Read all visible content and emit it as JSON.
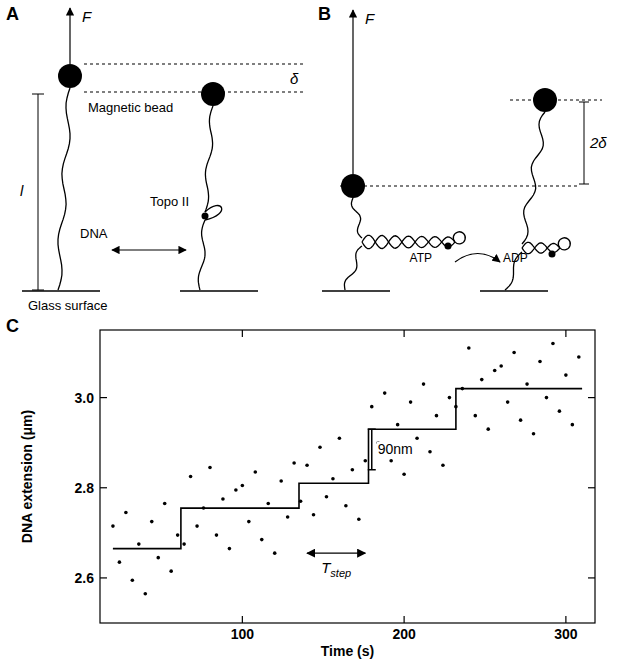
{
  "panels": {
    "A": {
      "label": "A",
      "force": "F",
      "delta": "δ",
      "bead": "Magnetic bead",
      "length": "l",
      "dna": "DNA",
      "enzyme": "Topo II",
      "surface": "Glass surface"
    },
    "B": {
      "label": "B",
      "force": "F",
      "atp": "ATP",
      "adp": "ADP",
      "delta": "2δ"
    }
  },
  "chart_data": {
    "type": "scatter",
    "label": "C",
    "xlabel": "Time (s)",
    "ylabel": "DNA extension (μm)",
    "xlim": [
      12,
      318
    ],
    "ylim": [
      2.5,
      3.15
    ],
    "xticks": [
      100,
      200,
      300
    ],
    "yticks": [
      2.6,
      2.8,
      {
        "value": 3,
        "label": "3.0"
      }
    ],
    "series": [
      {
        "type": "scatter",
        "color": "#000000",
        "marker": "circle",
        "x": [
          20,
          24,
          28,
          32,
          36,
          40,
          44,
          48,
          52,
          56,
          60,
          64,
          68,
          72,
          76,
          80,
          84,
          88,
          92,
          96,
          100,
          104,
          108,
          112,
          116,
          120,
          124,
          128,
          132,
          136,
          140,
          144,
          148,
          152,
          156,
          160,
          164,
          168,
          172,
          176,
          180,
          184,
          188,
          192,
          196,
          200,
          204,
          208,
          212,
          216,
          220,
          224,
          228,
          232,
          236,
          240,
          244,
          248,
          252,
          256,
          260,
          264,
          268,
          272,
          276,
          280,
          284,
          288,
          292,
          296,
          300,
          304,
          308
        ],
        "values": [
          2.715,
          2.635,
          2.745,
          2.595,
          2.675,
          2.565,
          2.725,
          2.645,
          2.765,
          2.615,
          2.695,
          2.675,
          2.825,
          2.715,
          2.755,
          2.845,
          2.695,
          2.775,
          2.665,
          2.795,
          2.805,
          2.725,
          2.835,
          2.685,
          2.765,
          2.655,
          2.815,
          2.735,
          2.855,
          2.77,
          2.85,
          2.74,
          2.89,
          2.78,
          2.82,
          2.91,
          2.76,
          2.84,
          2.73,
          2.86,
          2.98,
          2.9,
          3.01,
          2.86,
          2.94,
          2.83,
          2.99,
          2.91,
          3.03,
          2.88,
          2.96,
          2.85,
          3.0,
          2.98,
          3.02,
          3.11,
          2.96,
          3.04,
          2.93,
          3.06,
          3.07,
          2.99,
          3.1,
          2.95,
          3.03,
          2.92,
          3.08,
          3.0,
          3.12,
          2.97,
          3.05,
          2.94,
          3.09
        ]
      },
      {
        "type": "line",
        "color": "#000000",
        "line_style": "solid",
        "x": [
          20,
          62,
          62,
          135,
          135,
          178,
          178,
          232,
          232,
          310
        ],
        "values": [
          2.665,
          2.665,
          2.755,
          2.755,
          2.81,
          2.81,
          2.93,
          2.93,
          3.02,
          3.02
        ]
      }
    ],
    "annotations": [
      {
        "text": "90nm",
        "x": 180,
        "y": 2.84,
        "length": 0.09
      },
      {
        "text": "T",
        "subscript": "step",
        "x1": 140,
        "x2": 176,
        "y": 2.655
      }
    ]
  }
}
